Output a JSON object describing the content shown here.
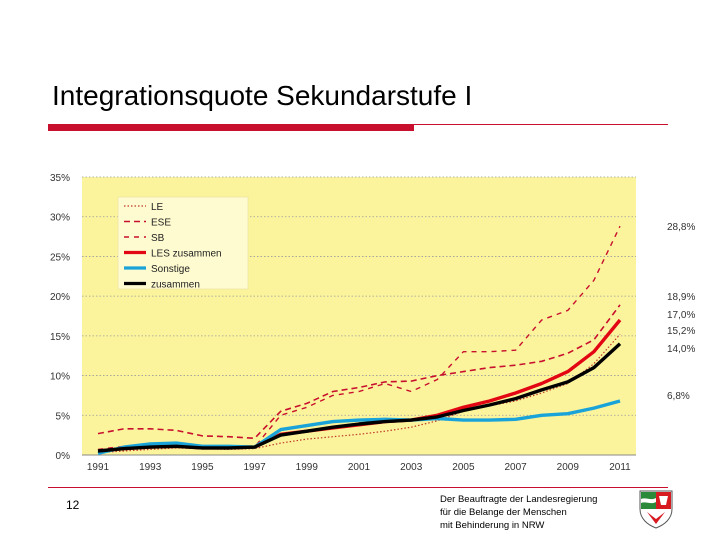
{
  "slide": {
    "title": "Integrationsquote Sekundarstufe I",
    "page_number": "12",
    "footer_lines": [
      "Der Beauftragte der Landesregierung",
      "für die Belange der Menschen",
      "mit Behinderung in NRW"
    ],
    "accent_color": "#c8102e"
  },
  "chart_data": {
    "type": "line",
    "title": "",
    "xlabel": "",
    "ylabel": "",
    "x": [
      1991,
      1992,
      1993,
      1994,
      1995,
      1996,
      1997,
      1998,
      1999,
      2000,
      2001,
      2002,
      2003,
      2004,
      2005,
      2006,
      2007,
      2008,
      2009,
      2010,
      2011
    ],
    "x_ticks": [
      "1991",
      "1993",
      "1995",
      "1997",
      "1999",
      "2001",
      "2003",
      "2005",
      "2007",
      "2009",
      "2011"
    ],
    "y_ticks": [
      "0%",
      "5%",
      "10%",
      "15%",
      "20%",
      "25%",
      "30%",
      "35%"
    ],
    "ylim": [
      0,
      35
    ],
    "plot_background": "#fbf49c",
    "grid": "horizontal dotted",
    "legend_position": "top-left",
    "series": [
      {
        "name": "LE",
        "color": "#c0392b",
        "style": "dotted",
        "values": [
          0.3,
          0.5,
          0.7,
          0.9,
          0.8,
          0.7,
          0.8,
          1.5,
          2.0,
          2.3,
          2.6,
          3.0,
          3.5,
          4.3,
          5.5,
          6.2,
          6.8,
          7.8,
          9.0,
          11.5,
          15.2
        ]
      },
      {
        "name": "ESE",
        "color": "#c8102e",
        "style": "dashed",
        "values": [
          2.7,
          3.3,
          3.3,
          3.1,
          2.4,
          2.3,
          2.1,
          5.5,
          6.5,
          8.0,
          8.5,
          9.2,
          9.3,
          10.0,
          10.5,
          11.0,
          11.3,
          11.8,
          12.8,
          14.5,
          18.9
        ]
      },
      {
        "name": "SB",
        "color": "#c8102e",
        "style": "dashed-long",
        "values": [
          0.7,
          1.1,
          1.1,
          1.1,
          0.8,
          0.9,
          1.0,
          5.0,
          6.0,
          7.5,
          8.0,
          9.0,
          8.0,
          9.5,
          13.0,
          13.0,
          13.2,
          17.0,
          18.2,
          22.0,
          28.8
        ]
      },
      {
        "name": "LES zusammen",
        "color": "#e30613",
        "style": "solid",
        "values": [
          0.5,
          0.8,
          1.0,
          1.1,
          0.9,
          0.9,
          1.0,
          2.6,
          3.0,
          3.4,
          3.8,
          4.2,
          4.4,
          5.0,
          6.0,
          6.8,
          7.8,
          9.0,
          10.5,
          13.0,
          17.0
        ]
      },
      {
        "name": "Sonstige",
        "color": "#1aa3d9",
        "style": "solid",
        "values": [
          0.2,
          1.0,
          1.4,
          1.5,
          1.1,
          1.1,
          1.0,
          3.2,
          3.7,
          4.2,
          4.4,
          4.5,
          4.4,
          4.6,
          4.4,
          4.4,
          4.5,
          5.0,
          5.2,
          5.9,
          6.8
        ]
      },
      {
        "name": "zusammen",
        "color": "#000000",
        "style": "solid",
        "values": [
          0.5,
          0.8,
          1.0,
          1.1,
          0.9,
          0.9,
          1.0,
          2.5,
          3.0,
          3.5,
          3.9,
          4.2,
          4.4,
          4.8,
          5.6,
          6.3,
          7.1,
          8.2,
          9.2,
          11.0,
          14.0
        ]
      }
    ],
    "end_labels": [
      "28,8%",
      "18,9%",
      "17,0%",
      "15,2%",
      "14,0%",
      "6,8%"
    ]
  }
}
